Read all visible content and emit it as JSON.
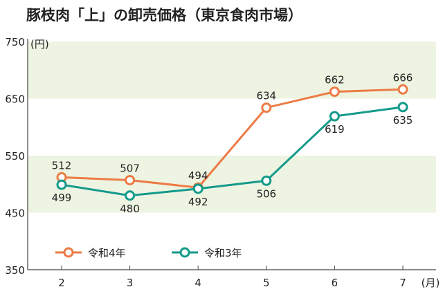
{
  "chart_data": {
    "type": "line",
    "title": "豚枝肉「上」の卸売価格（東京食肉市場）",
    "ylabel": "(円)",
    "xlabel": "(月)",
    "categories": [
      "2",
      "3",
      "4",
      "5",
      "6",
      "7"
    ],
    "ylim": [
      350,
      750
    ],
    "yticks": [
      "350",
      "450",
      "550",
      "650",
      "750"
    ],
    "bands": [
      [
        450,
        550
      ],
      [
        650,
        750
      ]
    ],
    "series": [
      {
        "name": "令和4年",
        "color": "#ec7b45",
        "values": [
          512,
          507,
          494,
          634,
          662,
          666
        ],
        "label_pos": "above"
      },
      {
        "name": "令和3年",
        "color": "#139a8a",
        "values": [
          499,
          480,
          492,
          506,
          619,
          635
        ],
        "label_pos": "below"
      }
    ],
    "band_color": "#eef4e2",
    "legend": "bottom-left"
  }
}
